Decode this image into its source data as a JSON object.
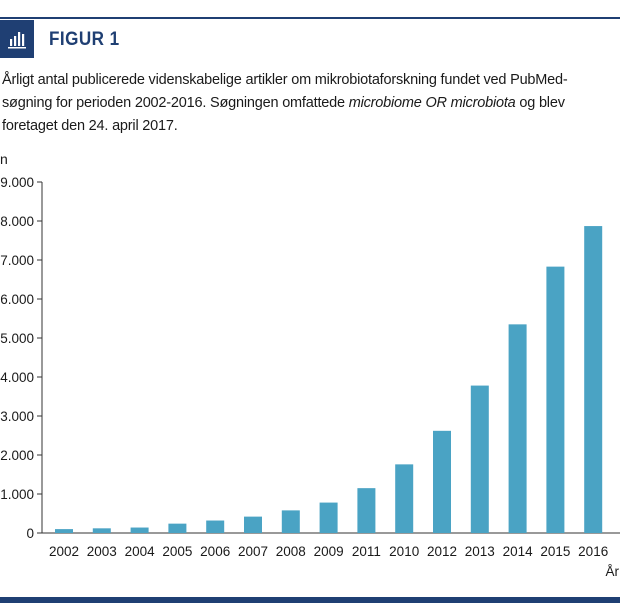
{
  "figure": {
    "label": "FIGUR 1",
    "caption_part1": "Årligt antal publicerede videnskabelige artikler om mikrobiotaforskning fundet ved PubMed-søgning for perioden 2002-2016. Søgningen omfattede ",
    "caption_italic": "microbiome OR microbiota",
    "caption_part2": " og blev foretaget den 24. april 2017.",
    "accent_color": "#1f3f73"
  },
  "chart_data": {
    "type": "bar",
    "ylabel": "n",
    "xlabel": "År",
    "ylim": [
      0,
      9000
    ],
    "ytick_values": [
      0,
      1000,
      2000,
      3000,
      4000,
      5000,
      6000,
      7000,
      8000,
      9000
    ],
    "ytick_labels": [
      "0",
      "1.000",
      "2.000",
      "3.000",
      "4.000",
      "5.000",
      "6.000",
      "7.000",
      "8.000",
      "9.000"
    ],
    "categories": [
      "2002",
      "2003",
      "2004",
      "2005",
      "2006",
      "2007",
      "2008",
      "2009",
      "2011",
      "2010",
      "2012",
      "2013",
      "2014",
      "2015",
      "2016"
    ],
    "values": [
      100,
      120,
      140,
      240,
      320,
      420,
      580,
      780,
      1150,
      1760,
      2620,
      3780,
      5350,
      6830,
      7870
    ],
    "bar_color": "#4aa3c4",
    "grid": false
  }
}
